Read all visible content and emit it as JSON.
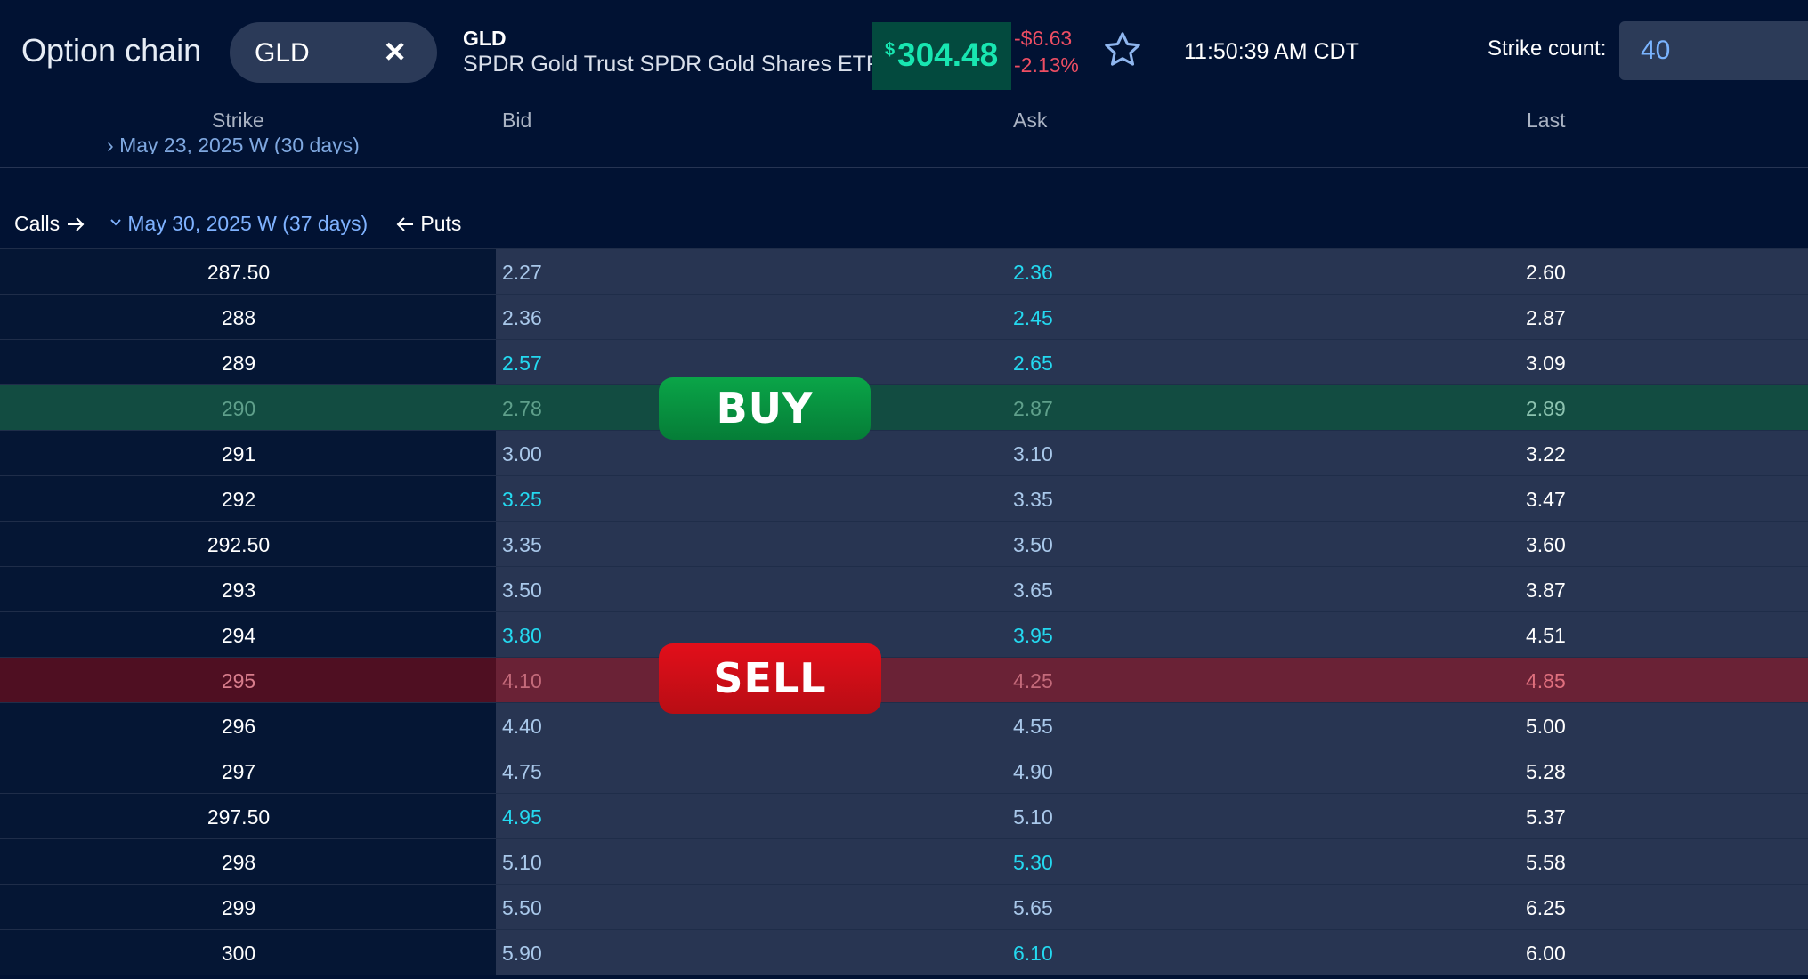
{
  "header": {
    "title": "Option chain",
    "ticker_input": "GLD",
    "clear_glyph": "×",
    "symbol": "GLD",
    "description": "SPDR Gold Trust SPDR Gold Shares ETF",
    "price_currency": "$",
    "price": "304.48",
    "change": "-$6.63",
    "change_pct": "-2.13%",
    "time": "11:50:39 AM CDT",
    "strike_count_label": "Strike count:",
    "strike_count_value": "40",
    "colors": {
      "price": "#18e6b1",
      "negative": "#ef4e63"
    }
  },
  "columns": {
    "strike": "Strike",
    "bid": "Bid",
    "ask": "Ask",
    "last": "Last"
  },
  "expirations": {
    "previous": "May 23, 2025 W (30 days)",
    "calls_label": "Calls",
    "selected": "May 30, 2025 W (37 days)",
    "puts_label": "Puts"
  },
  "rows": [
    {
      "strike": "287.50",
      "bid": "2.27",
      "ask": "2.36",
      "last": "2.60",
      "bid_hl": false,
      "ask_hl": true
    },
    {
      "strike": "288",
      "bid": "2.36",
      "ask": "2.45",
      "last": "2.87",
      "bid_hl": false,
      "ask_hl": true
    },
    {
      "strike": "289",
      "bid": "2.57",
      "ask": "2.65",
      "last": "3.09",
      "bid_hl": true,
      "ask_hl": true
    },
    {
      "strike": "290",
      "bid": "2.78",
      "ask": "2.87",
      "last": "2.89",
      "bid_hl": false,
      "ask_hl": false,
      "state": "buy"
    },
    {
      "strike": "291",
      "bid": "3.00",
      "ask": "3.10",
      "last": "3.22",
      "bid_hl": false,
      "ask_hl": false
    },
    {
      "strike": "292",
      "bid": "3.25",
      "ask": "3.35",
      "last": "3.47",
      "bid_hl": true,
      "ask_hl": false
    },
    {
      "strike": "292.50",
      "bid": "3.35",
      "ask": "3.50",
      "last": "3.60",
      "bid_hl": false,
      "ask_hl": false
    },
    {
      "strike": "293",
      "bid": "3.50",
      "ask": "3.65",
      "last": "3.87",
      "bid_hl": false,
      "ask_hl": false
    },
    {
      "strike": "294",
      "bid": "3.80",
      "ask": "3.95",
      "last": "4.51",
      "bid_hl": true,
      "ask_hl": true
    },
    {
      "strike": "295",
      "bid": "4.10",
      "ask": "4.25",
      "last": "4.85",
      "bid_hl": false,
      "ask_hl": false,
      "state": "sell"
    },
    {
      "strike": "296",
      "bid": "4.40",
      "ask": "4.55",
      "last": "5.00",
      "bid_hl": false,
      "ask_hl": false
    },
    {
      "strike": "297",
      "bid": "4.75",
      "ask": "4.90",
      "last": "5.28",
      "bid_hl": false,
      "ask_hl": false
    },
    {
      "strike": "297.50",
      "bid": "4.95",
      "ask": "5.10",
      "last": "5.37",
      "bid_hl": true,
      "ask_hl": false
    },
    {
      "strike": "298",
      "bid": "5.10",
      "ask": "5.30",
      "last": "5.58",
      "bid_hl": false,
      "ask_hl": true
    },
    {
      "strike": "299",
      "bid": "5.50",
      "ask": "5.65",
      "last": "6.25",
      "bid_hl": false,
      "ask_hl": false
    },
    {
      "strike": "300",
      "bid": "5.90",
      "ask": "6.10",
      "last": "6.00",
      "bid_hl": false,
      "ask_hl": true
    }
  ],
  "badges": {
    "buy": "BUY",
    "sell": "SELL"
  }
}
